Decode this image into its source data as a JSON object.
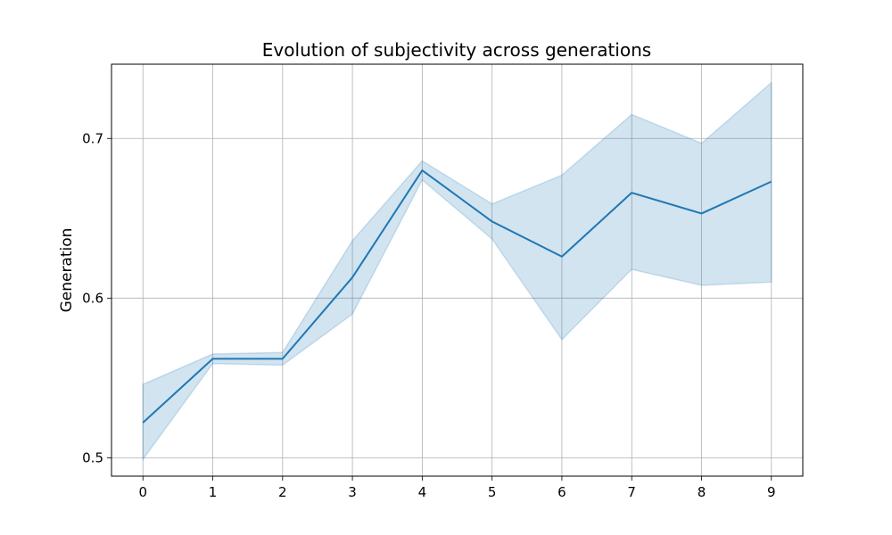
{
  "chart_data": {
    "type": "line",
    "title": "Evolution of subjectivity across generations",
    "xlabel": "",
    "ylabel": "Generation",
    "x": [
      0,
      1,
      2,
      3,
      4,
      5,
      6,
      7,
      8,
      9
    ],
    "xticks": [
      "0",
      "1",
      "2",
      "3",
      "4",
      "5",
      "6",
      "7",
      "8",
      "9"
    ],
    "yticks": [
      0.5,
      0.6,
      0.7
    ],
    "ytick_labels": [
      "0.5",
      "0.6",
      "0.7"
    ],
    "xlim": [
      -0.45,
      9.45
    ],
    "ylim": [
      0.4885,
      0.7465
    ],
    "grid": true,
    "series": [
      {
        "values": [
          0.522,
          0.562,
          0.562,
          0.613,
          0.68,
          0.648,
          0.626,
          0.666,
          0.653,
          0.673
        ],
        "ci_lower": [
          0.499,
          0.559,
          0.558,
          0.59,
          0.674,
          0.637,
          0.574,
          0.618,
          0.608,
          0.61
        ],
        "ci_upper": [
          0.546,
          0.565,
          0.566,
          0.636,
          0.686,
          0.659,
          0.677,
          0.715,
          0.697,
          0.735
        ],
        "color": "#1f77b4",
        "band_color": "#1f77b4"
      }
    ]
  }
}
